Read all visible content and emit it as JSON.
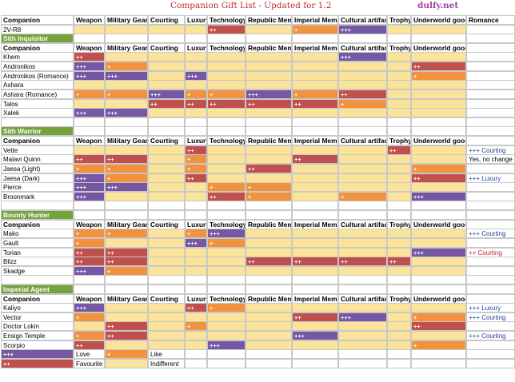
{
  "title": "Companion Gift List - Updated for 1.2",
  "site": "dulfy.net",
  "colors": {
    "lovePlus3": "#7557a3",
    "favouritePlus2": "#c0504d",
    "likePlus1": "#f0923e",
    "indifferent": "#fbe49a",
    "section": "#74a33c",
    "grid": "#c8c8c8"
  },
  "columns": [
    "Companion",
    "Weapon",
    "Military Gear",
    "Courting",
    "Luxury",
    "Technology",
    "Republic Mem",
    "Imperial Mem",
    "Cultural artifact",
    "Trophy",
    "Underworld good",
    "Romance"
  ],
  "topRow": {
    "name": "2V-R8",
    "values": [
      "",
      "",
      "",
      "",
      "++",
      "",
      "+",
      "+++",
      "",
      "",
      ""
    ],
    "note": ""
  },
  "sections": [
    {
      "title": "Sith Inquisitor",
      "header": [
        "Companion",
        "Weapon",
        "Military Gear",
        "Courting",
        "Luxury",
        "Technology",
        "Republic Mem",
        "Imperial Mem",
        "Cultural artifact",
        "Trophy",
        "Underworld good",
        ""
      ],
      "rows": [
        {
          "name": "Khem",
          "values": [
            "++",
            "",
            "",
            "",
            "",
            "",
            "",
            "+++",
            "",
            "",
            ""
          ],
          "note": ""
        },
        {
          "name": "Andronikos",
          "values": [
            "+++",
            "+",
            "",
            "",
            "",
            "",
            "",
            "",
            "",
            "++",
            ""
          ],
          "note": ""
        },
        {
          "name": "Andronikos (Romance)",
          "values": [
            "+++",
            "+++",
            "",
            "+++",
            "",
            "",
            "",
            "",
            "",
            "+",
            ""
          ],
          "note": ""
        },
        {
          "name": "Ashara",
          "values": [
            "",
            "",
            "",
            "",
            "",
            "",
            "",
            "",
            "",
            "",
            ""
          ],
          "note": ""
        },
        {
          "name": "Ashara (Romance)",
          "values": [
            "+",
            "+",
            "+++",
            "+",
            "+",
            "+++",
            "+",
            "++",
            "",
            "",
            ""
          ],
          "note": ""
        },
        {
          "name": "Talos",
          "values": [
            "",
            "",
            "++",
            "++",
            "++",
            "++",
            "++",
            "+",
            "",
            "",
            ""
          ],
          "note": ""
        },
        {
          "name": "Xalek",
          "values": [
            "+++",
            "+++",
            "",
            "",
            "",
            "",
            "",
            "",
            "",
            "",
            ""
          ],
          "note": ""
        }
      ]
    },
    {
      "title": "Sith Warrior",
      "header": [
        "Companion",
        "Weapon",
        "Military Gear",
        "Courting",
        "Luxury",
        "Technology",
        "Republic Mem",
        "Imperial Mem",
        "Cultural artifact",
        "Trophy",
        "Underworld good",
        ""
      ],
      "rows": [
        {
          "name": "Vette",
          "values": [
            "",
            "",
            "",
            "++",
            "",
            "",
            "",
            "",
            "++",
            "",
            "+++"
          ],
          "note": "+++ Courting"
        },
        {
          "name": "Malavi Quinn",
          "values": [
            "++",
            "++",
            "",
            "+",
            "",
            "",
            "++",
            "",
            "",
            "",
            ""
          ],
          "note": "Yes, no change"
        },
        {
          "name": "Jaesa (Light)",
          "values": [
            "+",
            "+",
            "",
            "+",
            "",
            "++",
            "",
            "",
            "",
            "+",
            ""
          ],
          "note": ""
        },
        {
          "name": "Jaesa (Dark)",
          "values": [
            "+++",
            "+",
            "",
            "++",
            "",
            "",
            "",
            "",
            "",
            "++",
            ""
          ],
          "note": "+++ Luxury"
        },
        {
          "name": "Pierce",
          "values": [
            "+++",
            "+++",
            "",
            "",
            "+",
            "+",
            "",
            "",
            "",
            "",
            ""
          ],
          "note": ""
        },
        {
          "name": "Broonmark",
          "values": [
            "+++",
            "",
            "",
            "",
            "++",
            "+",
            "",
            "+",
            "",
            "+++",
            ""
          ],
          "note": ""
        }
      ]
    },
    {
      "title": "Bounty Hunter",
      "header": [
        "Companion",
        "Weapon",
        "Military Gear",
        "Courting",
        "Luxury",
        "Technology",
        "Republic Mem",
        "Imperial Mem",
        "Cultural artifact",
        "Trophy",
        "Underworld good",
        ""
      ],
      "rows": [
        {
          "name": "Mako",
          "values": [
            "+",
            "+",
            "",
            "+",
            "+++",
            "",
            "",
            "",
            "",
            "",
            "++"
          ],
          "note": "+++ Courting"
        },
        {
          "name": "Gault",
          "values": [
            "+",
            "",
            "",
            "+++",
            "+",
            "",
            "",
            "",
            "",
            "",
            "+"
          ],
          "note": ""
        },
        {
          "name": "Torian",
          "values": [
            "++",
            "++",
            "",
            "",
            "",
            "",
            "",
            "",
            "",
            "+++",
            "+"
          ],
          "note": "++ Courting"
        },
        {
          "name": "Blizz",
          "values": [
            "++",
            "++",
            "",
            "",
            "",
            "++",
            "++",
            "++",
            "++",
            "",
            "+++"
          ],
          "note": ""
        },
        {
          "name": "Skadge",
          "values": [
            "+++",
            "+",
            "",
            "",
            "",
            "",
            "",
            "",
            "",
            "",
            "+++"
          ],
          "note": ""
        }
      ]
    },
    {
      "title": "Imperial Agent",
      "header": [
        "Companion",
        "Weapon",
        "Military Gear",
        "Courting",
        "Luxury",
        "Technology",
        "Republic Mem",
        "Imperial Mem",
        "Cultural artifact",
        "Trophy",
        "Underworld good",
        ""
      ],
      "rows": [
        {
          "name": "Kaliyo",
          "values": [
            "+++",
            "",
            "",
            "++",
            "+",
            "",
            "",
            "",
            "",
            "",
            "++"
          ],
          "note": "+++ Luxury"
        },
        {
          "name": "Vector",
          "values": [
            "+",
            "",
            "",
            "",
            "",
            "",
            "++",
            "+++",
            "",
            "+",
            ""
          ],
          "note": "+++ Courting"
        },
        {
          "name": "Doctor Lokin",
          "values": [
            "",
            "++",
            "",
            "+",
            "",
            "",
            "",
            "",
            "",
            "++",
            ""
          ],
          "note": ""
        },
        {
          "name": "Ensign Temple",
          "values": [
            "+",
            "++",
            "",
            "",
            "",
            "",
            "+++",
            "",
            "",
            "",
            ""
          ],
          "note": "+++ Courting"
        },
        {
          "name": "Scorpio",
          "values": [
            "++",
            "",
            "",
            "",
            "+++",
            "",
            "",
            "",
            "",
            "+",
            ""
          ],
          "note": ""
        }
      ]
    }
  ],
  "legend": [
    {
      "mark": "+++",
      "label": "Love",
      "mark2": "+",
      "label2": "Like"
    },
    {
      "mark": "++",
      "label": "Favourite",
      "mark2": "",
      "label2": "Indifferent"
    }
  ]
}
